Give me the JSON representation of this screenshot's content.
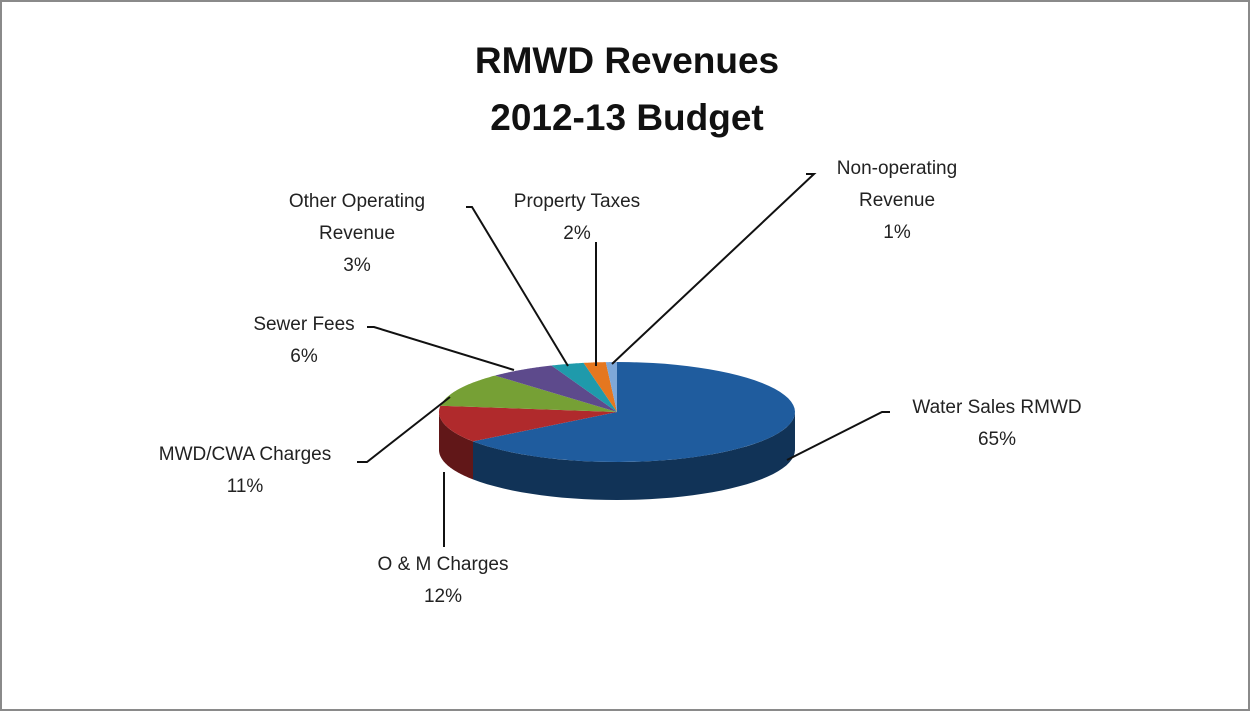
{
  "chart_data": {
    "type": "pie3d",
    "title": "RMWD Revenues",
    "subtitle": "2012-13 Budget",
    "categories": [
      "Water Sales RMWD",
      "O & M Charges",
      "MWD/CWA Charges",
      "Sewer Fees",
      "Other Operating Revenue",
      "Property Taxes",
      "Non-operating Revenue"
    ],
    "values": [
      65,
      12,
      11,
      6,
      3,
      2,
      1
    ],
    "value_labels": [
      "65%",
      "12%",
      "11%",
      "6%",
      "3%",
      "2%",
      "1%"
    ],
    "colors": [
      "#1f5c9e",
      "#b02a2c",
      "#76a035",
      "#5d4a8c",
      "#1f9aab",
      "#e5771f",
      "#7ea8d8"
    ]
  }
}
